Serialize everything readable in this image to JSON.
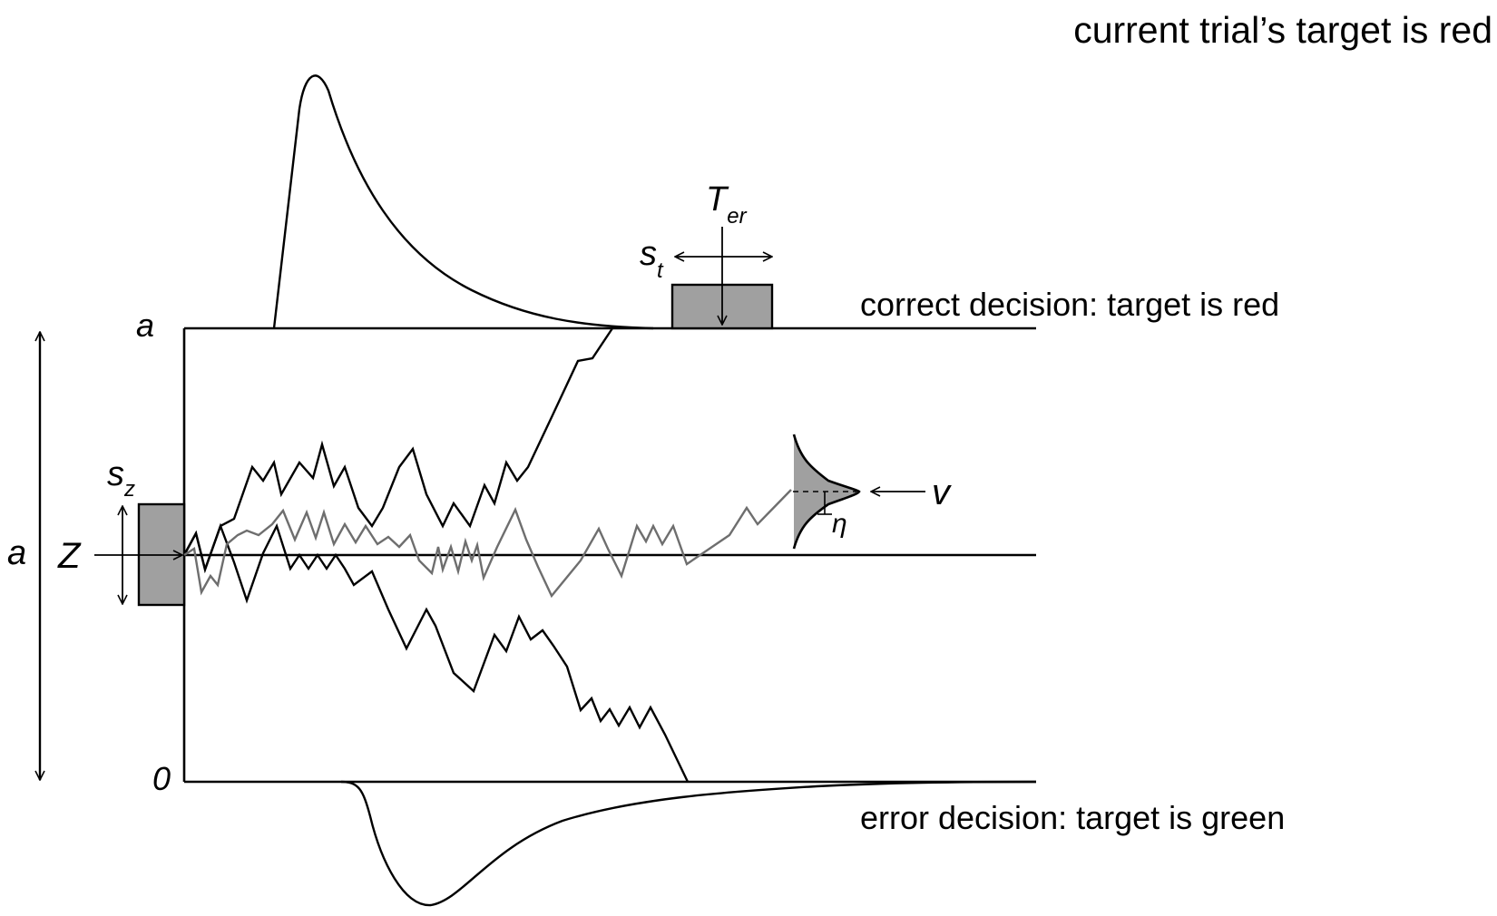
{
  "header": {
    "title": "current trial’s target is red"
  },
  "boundaries": {
    "upper_label": "correct decision: target is red",
    "lower_label": "error decision: target is green",
    "upper_value": "a",
    "lower_value": "0"
  },
  "params": {
    "separation": "a",
    "start_point": "Z",
    "sz_main": "s",
    "sz_sub": "z",
    "st_main": "s",
    "st_sub": "t",
    "ter_main": "T",
    "ter_sub": "er",
    "drift": "v",
    "drift_variability": "η"
  },
  "colors": {
    "box_fill": "#a0a0a0",
    "grey_path": "#6e6e6e",
    "ink": "#000000"
  }
}
